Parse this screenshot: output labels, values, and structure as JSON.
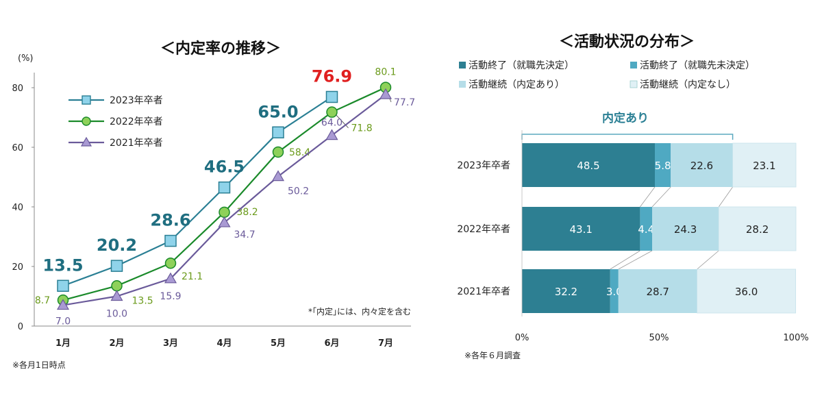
{
  "chart_data": [
    {
      "type": "line",
      "title": "＜内定率の推移＞",
      "ylabel": "(%)",
      "ylim": [
        0,
        80
      ],
      "yticks": [
        0,
        20,
        40,
        60,
        80
      ],
      "categories": [
        "1月",
        "2月",
        "3月",
        "4月",
        "5月",
        "6月",
        "7月"
      ],
      "grid": false,
      "legend_position": "top-left",
      "series": [
        {
          "name": "2023年卒者",
          "values": [
            13.5,
            20.2,
            28.6,
            46.5,
            65.0,
            76.9,
            null
          ],
          "color": "#2a7f94",
          "marker": "square",
          "labels": [
            "13.5",
            "20.2",
            "28.6",
            "46.5",
            "65.0",
            "76.9",
            null
          ]
        },
        {
          "name": "2022年卒者",
          "values": [
            8.7,
            13.5,
            21.1,
            38.2,
            58.4,
            71.8,
            80.1
          ],
          "color": "#1a8a2a",
          "marker": "circle",
          "labels": [
            "8.7",
            "13.5",
            "21.1",
            "38.2",
            "58.4",
            "71.8",
            "80.1"
          ]
        },
        {
          "name": "2021年卒者",
          "values": [
            7.0,
            10.0,
            15.9,
            34.7,
            50.2,
            64.0,
            77.7
          ],
          "color": "#6a5a9a",
          "marker": "triangle",
          "labels": [
            "7.0",
            "10.0",
            "15.9",
            "34.7",
            "50.2",
            "64.0",
            "77.7"
          ]
        }
      ],
      "highlight_color": "#e02020",
      "note": "*｢内定｣には、内々定を含む",
      "footnote": "※各月1日時点"
    },
    {
      "type": "bar",
      "orientation": "horizontal",
      "stacked": true,
      "title": "＜活動状況の分布＞",
      "categories": [
        "2023年卒者",
        "2022年卒者",
        "2021年卒者"
      ],
      "xlim": [
        0,
        100
      ],
      "xtick_labels": [
        "0%",
        "50%",
        "100%"
      ],
      "legend_position": "top",
      "series": [
        {
          "name": "活動終了（就職先決定）",
          "values": [
            48.5,
            43.1,
            32.2
          ],
          "color": "#2d7f92",
          "labels": [
            "48.5",
            "43.1",
            "32.2"
          ]
        },
        {
          "name": "活動終了（就職先未決定）",
          "values": [
            5.8,
            4.4,
            3.0
          ],
          "color": "#4fa9c2",
          "labels": [
            "5.8",
            "4.4",
            "3.0"
          ]
        },
        {
          "name": "活動継続（内定あり）",
          "values": [
            22.6,
            24.3,
            28.7
          ],
          "color": "#b5dde8",
          "labels": [
            "22.6",
            "24.3",
            "28.7"
          ]
        },
        {
          "name": "活動継続（内定なし）",
          "values": [
            23.1,
            28.2,
            36.0
          ],
          "color": "#e0f0f5",
          "labels": [
            "23.1",
            "28.2",
            "36.0"
          ]
        }
      ],
      "bracket_label": "内定あり",
      "footnote": "※各年６月調査"
    }
  ]
}
